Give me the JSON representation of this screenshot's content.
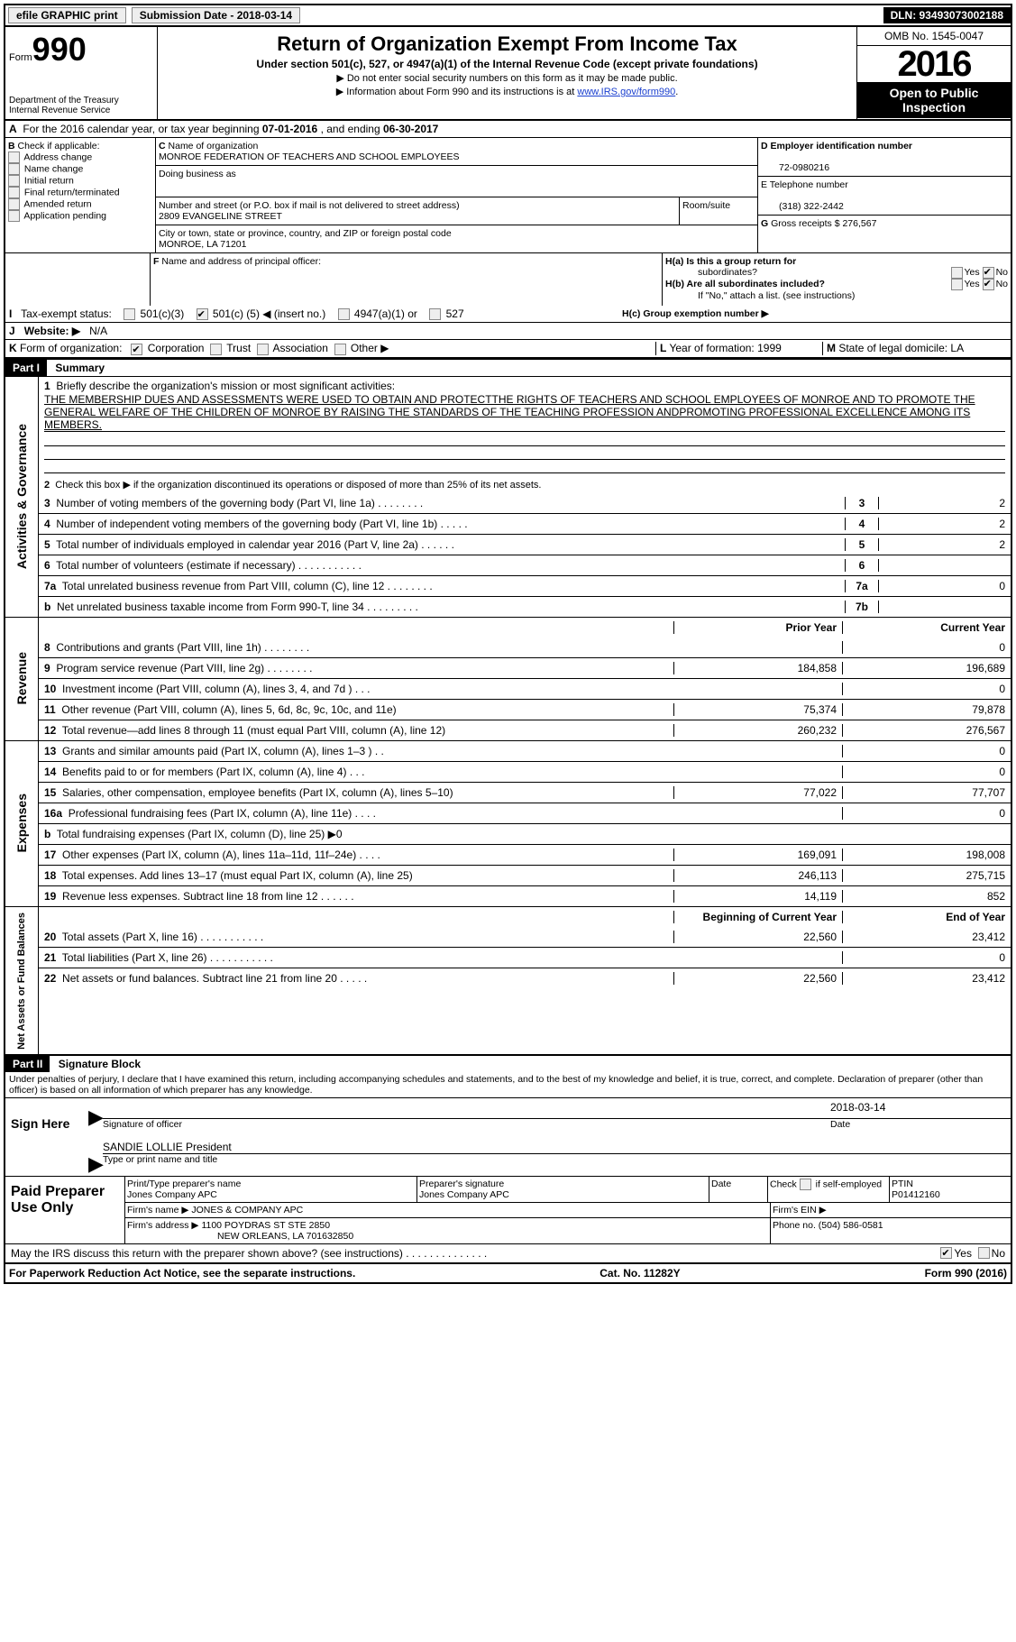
{
  "top": {
    "efile": "efile GRAPHIC print",
    "submission": "Submission Date - 2018-03-14",
    "dln": "DLN: 93493073002188"
  },
  "header": {
    "form_word": "Form",
    "form_num": "990",
    "dept1": "Department of the Treasury",
    "dept2": "Internal Revenue Service",
    "title": "Return of Organization Exempt From Income Tax",
    "subtitle": "Under section 501(c), 527, or 4947(a)(1) of the Internal Revenue Code (except private foundations)",
    "arrow1": "▶ Do not enter social security numbers on this form as it may be made public.",
    "arrow2_pre": "▶ Information about Form 990 and its instructions is at ",
    "arrow2_link": "www.IRS.gov/form990",
    "arrow2_post": ".",
    "omb": "OMB No. 1545-0047",
    "year": "2016",
    "open1": "Open to Public",
    "open2": "Inspection"
  },
  "lineA": {
    "text_pre": "For the 2016 calendar year, or tax year beginning ",
    "begin": "07-01-2016",
    "mid": " , and ending ",
    "end": "06-30-2017",
    "label": "A"
  },
  "boxB": {
    "label_b": "B",
    "label": "Check if applicable:",
    "opts": [
      "Address change",
      "Name change",
      "Initial return",
      "Final return/terminated",
      "Amended return",
      "Application pending"
    ]
  },
  "boxC": {
    "label": "C",
    "name_label": "Name of organization",
    "name": "MONROE FEDERATION OF TEACHERS AND SCHOOL EMPLOYEES",
    "dba": "Doing business as",
    "street_label": "Number and street (or P.O. box if mail is not delivered to street address)",
    "room": "Room/suite",
    "street": "2809 EVANGELINE STREET",
    "city_label": "City or town, state or province, country, and ZIP or foreign postal code",
    "city": "MONROE, LA  71201"
  },
  "boxD": {
    "label": "D Employer identification number",
    "val": "72-0980216"
  },
  "boxE": {
    "label": "E Telephone number",
    "val": "(318) 322-2442"
  },
  "boxG": {
    "label": "G",
    "text": "Gross receipts $ ",
    "val": "276,567"
  },
  "boxF": {
    "label": "F",
    "text": "Name and address of principal officer:"
  },
  "boxH": {
    "a": "H(a)  Is this a group return for",
    "a2": "subordinates?",
    "b": "H(b)  Are all subordinates included?",
    "b2": "If \"No,\" attach a list. (see instructions)",
    "c": "H(c)  Group exemption number ▶",
    "yes": "Yes",
    "no": "No"
  },
  "lineI": {
    "label": "I",
    "text": "Tax-exempt status:",
    "o1": "501(c)(3)",
    "o2a": "501(c) (",
    "o2n": "5",
    "o2b": ") ◀ (insert no.)",
    "o3": "4947(a)(1) or",
    "o4": "527"
  },
  "lineJ": {
    "label": "J",
    "text": "Website: ▶",
    "val": "N/A"
  },
  "lineK": {
    "label": "K",
    "text": "Form of organization:",
    "o1": "Corporation",
    "o2": "Trust",
    "o3": "Association",
    "o4": "Other ▶"
  },
  "lineL": {
    "label": "L",
    "text": "Year of formation: ",
    "val": "1999"
  },
  "lineM": {
    "label": "M",
    "text": "State of legal domicile: ",
    "val": "LA"
  },
  "part1": {
    "label": "Part I",
    "title": "Summary",
    "side_gov": "Activities & Governance",
    "side_rev": "Revenue",
    "side_exp": "Expenses",
    "side_net": "Net Assets or Fund Balances",
    "l1_label": "1",
    "l1": "Briefly describe the organization's mission or most significant activities:",
    "l1_val": "THE MEMBERSHIP DUES AND ASSESSMENTS WERE USED TO OBTAIN AND PROTECTTHE RIGHTS OF TEACHERS AND SCHOOL EMPLOYEES OF MONROE AND TO PROMOTE THE GENERAL WELFARE OF THE CHILDREN OF MONROE BY RAISING THE STANDARDS OF THE TEACHING PROFESSION ANDPROMOTING PROFESSIONAL EXCELLENCE AMONG ITS MEMBERS.",
    "l2": "Check this box ▶        if the organization discontinued its operations or disposed of more than 25% of its net assets.",
    "l2_label": "2",
    "rows_gov": [
      {
        "n": "3",
        "d": "Number of voting members of the governing body (Part VI, line 1a)   .    .    .    .    .    .    .    .",
        "box": "3",
        "v": "2"
      },
      {
        "n": "4",
        "d": "Number of independent voting members of the governing body (Part VI, line 1b)   .    .    .    .    .",
        "box": "4",
        "v": "2"
      },
      {
        "n": "5",
        "d": "Total number of individuals employed in calendar year 2016 (Part V, line 2a)   .    .    .    .    .    .",
        "box": "5",
        "v": "2"
      },
      {
        "n": "6",
        "d": "Total number of volunteers (estimate if necessary)   .    .    .    .    .    .    .    .    .    .    .",
        "box": "6",
        "v": ""
      },
      {
        "n": "7a",
        "d": "Total unrelated business revenue from Part VIII, column (C), line 12   .    .    .    .    .    .    .    .",
        "box": "7a",
        "v": "0"
      },
      {
        "n": "b",
        "d": "Net unrelated business taxable income from Form 990-T, line 34   .    .    .    .    .    .    .    .    .",
        "box": "7b",
        "v": ""
      }
    ],
    "hdr_prior": "Prior Year",
    "hdr_curr": "Current Year",
    "rows_rev": [
      {
        "n": "8",
        "d": "Contributions and grants (Part VIII, line 1h)   .    .    .    .    .    .    .    .",
        "p": "",
        "c": "0"
      },
      {
        "n": "9",
        "d": "Program service revenue (Part VIII, line 2g)   .    .    .    .    .    .    .    .",
        "p": "184,858",
        "c": "196,689"
      },
      {
        "n": "10",
        "d": "Investment income (Part VIII, column (A), lines 3, 4, and 7d )   .    .    .",
        "p": "",
        "c": "0"
      },
      {
        "n": "11",
        "d": "Other revenue (Part VIII, column (A), lines 5, 6d, 8c, 9c, 10c, and 11e)",
        "p": "75,374",
        "c": "79,878"
      },
      {
        "n": "12",
        "d": "Total revenue—add lines 8 through 11 (must equal Part VIII, column (A), line 12)",
        "p": "260,232",
        "c": "276,567"
      }
    ],
    "rows_exp": [
      {
        "n": "13",
        "d": "Grants and similar amounts paid (Part IX, column (A), lines 1–3 )  .    .",
        "p": "",
        "c": "0"
      },
      {
        "n": "14",
        "d": "Benefits paid to or for members (Part IX, column (A), line 4)  .    .    .",
        "p": "",
        "c": "0"
      },
      {
        "n": "15",
        "d": "Salaries, other compensation, employee benefits (Part IX, column (A), lines 5–10)",
        "p": "77,022",
        "c": "77,707"
      },
      {
        "n": "16a",
        "d": "Professional fundraising fees (Part IX, column (A), line 11e)   .    .    .    .",
        "p": "",
        "c": "0"
      },
      {
        "n": "b",
        "d": "Total fundraising expenses (Part IX, column (D), line 25) ▶0",
        "p": "shade",
        "c": "shade"
      },
      {
        "n": "17",
        "d": "Other expenses (Part IX, column (A), lines 11a–11d, 11f–24e)   .    .    .    .",
        "p": "169,091",
        "c": "198,008"
      },
      {
        "n": "18",
        "d": "Total expenses. Add lines 13–17 (must equal Part IX, column (A), line 25)",
        "p": "246,113",
        "c": "275,715"
      },
      {
        "n": "19",
        "d": "Revenue less expenses. Subtract line 18 from line 12   .    .    .    .    .    .",
        "p": "14,119",
        "c": "852"
      }
    ],
    "hdr_beg": "Beginning of Current Year",
    "hdr_end": "End of Year",
    "rows_net": [
      {
        "n": "20",
        "d": "Total assets (Part X, line 16)   .    .    .    .    .    .    .    .    .    .    .",
        "p": "22,560",
        "c": "23,412"
      },
      {
        "n": "21",
        "d": "Total liabilities (Part X, line 26)   .    .    .    .    .    .    .    .    .    .    .",
        "p": "",
        "c": "0"
      },
      {
        "n": "22",
        "d": "Net assets or fund balances. Subtract line 21 from line 20  .    .    .    .    .",
        "p": "22,560",
        "c": "23,412"
      }
    ]
  },
  "part2": {
    "label": "Part II",
    "title": "Signature Block",
    "perjury": "Under penalties of perjury, I declare that I have examined this return, including accompanying schedules and statements, and to the best of my knowledge and belief, it is true, correct, and complete. Declaration of preparer (other than officer) is based on all information of which preparer has any knowledge.",
    "sign_here": "Sign Here",
    "sig_officer": "Signature of officer",
    "date": "Date",
    "date_val": "2018-03-14",
    "name_title": "SANDIE LOLLIE  President",
    "type_name": "Type or print name and title",
    "paid": "Paid Preparer Use Only",
    "prep_name_label": "Print/Type preparer's name",
    "prep_name": "Jones Company APC",
    "prep_sig_label": "Preparer's signature",
    "prep_sig": "Jones Company APC",
    "date2": "Date",
    "check_if": "Check        if self-employed",
    "ptin_label": "PTIN",
    "ptin": "P01412160",
    "firm_name_label": "Firm's name     ▶",
    "firm_name": "JONES & COMPANY APC",
    "firm_ein": "Firm's EIN ▶",
    "firm_addr_label": "Firm's address ▶",
    "firm_addr1": "1100 POYDRAS ST STE 2850",
    "firm_addr2": "NEW ORLEANS, LA  701632850",
    "phone_label": "Phone no. ",
    "phone": "(504) 586-0581",
    "may_irs": "May the IRS discuss this return with the preparer shown above? (see instructions)   .    .    .    .    .    .    .    .    .    .    .    .    .    .",
    "yes": "Yes",
    "no": "No"
  },
  "footer": {
    "left": "For Paperwork Reduction Act Notice, see the separate instructions.",
    "mid": "Cat. No. 11282Y",
    "right": "Form 990 (2016)"
  }
}
